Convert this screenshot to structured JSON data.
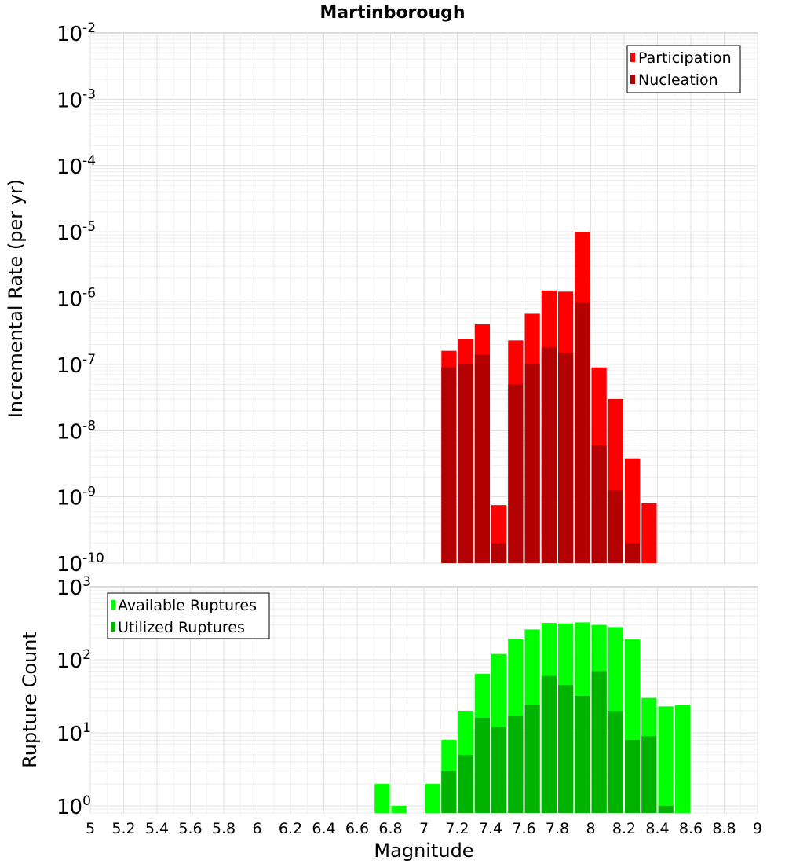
{
  "title": "Martinborough",
  "chart_data": [
    {
      "type": "bar",
      "scale": "log",
      "title": "Martinborough",
      "xlabel": "Magnitude",
      "ylabel": "Incremental Rate (per yr)",
      "xlim": [
        5,
        9
      ],
      "ylim": [
        1e-10,
        0.01
      ],
      "y_ticks": [
        {
          "base": "10",
          "exp": "-10"
        },
        {
          "base": "10",
          "exp": "-9"
        },
        {
          "base": "10",
          "exp": "-8"
        },
        {
          "base": "10",
          "exp": "-7"
        },
        {
          "base": "10",
          "exp": "-6"
        },
        {
          "base": "10",
          "exp": "-5"
        },
        {
          "base": "10",
          "exp": "-4"
        },
        {
          "base": "10",
          "exp": "-3"
        },
        {
          "base": "10",
          "exp": "-2"
        }
      ],
      "legend_position": "top-right",
      "grid": true,
      "bin_width": 0.1,
      "series": [
        {
          "name": "Participation",
          "color": "#ff0000",
          "x": [
            7.15,
            7.25,
            7.35,
            7.45,
            7.55,
            7.65,
            7.75,
            7.85,
            7.95,
            8.05,
            8.15,
            8.25,
            8.35
          ],
          "values": [
            1.6e-07,
            2.4e-07,
            4e-07,
            7.5e-10,
            2.3e-07,
            5.8e-07,
            1.3e-06,
            1.25e-06,
            1e-05,
            9e-08,
            3e-08,
            3.8e-09,
            8e-10
          ]
        },
        {
          "name": "Nucleation",
          "color": "#b30000",
          "x": [
            7.15,
            7.25,
            7.35,
            7.45,
            7.55,
            7.65,
            7.75,
            7.85,
            7.95,
            8.05,
            8.15,
            8.25
          ],
          "values": [
            9e-08,
            1e-07,
            1.4e-07,
            2e-10,
            5e-08,
            1e-07,
            1.8e-07,
            1.5e-07,
            8.5e-07,
            6e-09,
            1.25e-09,
            2e-10
          ]
        }
      ]
    },
    {
      "type": "bar",
      "scale": "log",
      "xlabel": "Magnitude",
      "ylabel": "Rupture Count",
      "xlim": [
        5,
        9
      ],
      "ylim": [
        0.8,
        1000
      ],
      "y_ticks": [
        {
          "base": "10",
          "exp": "0"
        },
        {
          "base": "10",
          "exp": "1"
        },
        {
          "base": "10",
          "exp": "2"
        },
        {
          "base": "10",
          "exp": "3"
        }
      ],
      "x_ticks": [
        "5",
        "5.2",
        "5.4",
        "5.6",
        "5.8",
        "6",
        "6.2",
        "6.4",
        "6.6",
        "6.8",
        "7",
        "7.2",
        "7.4",
        "7.6",
        "7.8",
        "8",
        "8.2",
        "8.4",
        "8.6",
        "8.8",
        "9"
      ],
      "legend_position": "top-left",
      "grid": true,
      "bin_width": 0.1,
      "series": [
        {
          "name": "Available Ruptures",
          "color": "#00ff00",
          "x": [
            6.75,
            6.85,
            7.05,
            7.15,
            7.25,
            7.35,
            7.45,
            7.55,
            7.65,
            7.75,
            7.85,
            7.95,
            8.05,
            8.15,
            8.25,
            8.35,
            8.45,
            8.55
          ],
          "values": [
            2,
            1,
            2,
            8,
            20,
            64,
            120,
            195,
            260,
            320,
            315,
            325,
            300,
            280,
            190,
            30,
            23,
            24
          ]
        },
        {
          "name": "Utilized Ruptures",
          "color": "#00b300",
          "x": [
            7.15,
            7.25,
            7.35,
            7.45,
            7.55,
            7.65,
            7.75,
            7.85,
            7.95,
            8.05,
            8.15,
            8.25,
            8.35,
            8.45
          ],
          "values": [
            3,
            5,
            16,
            12,
            17,
            24,
            60,
            45,
            32,
            70,
            20,
            8,
            9,
            1
          ]
        }
      ]
    }
  ]
}
